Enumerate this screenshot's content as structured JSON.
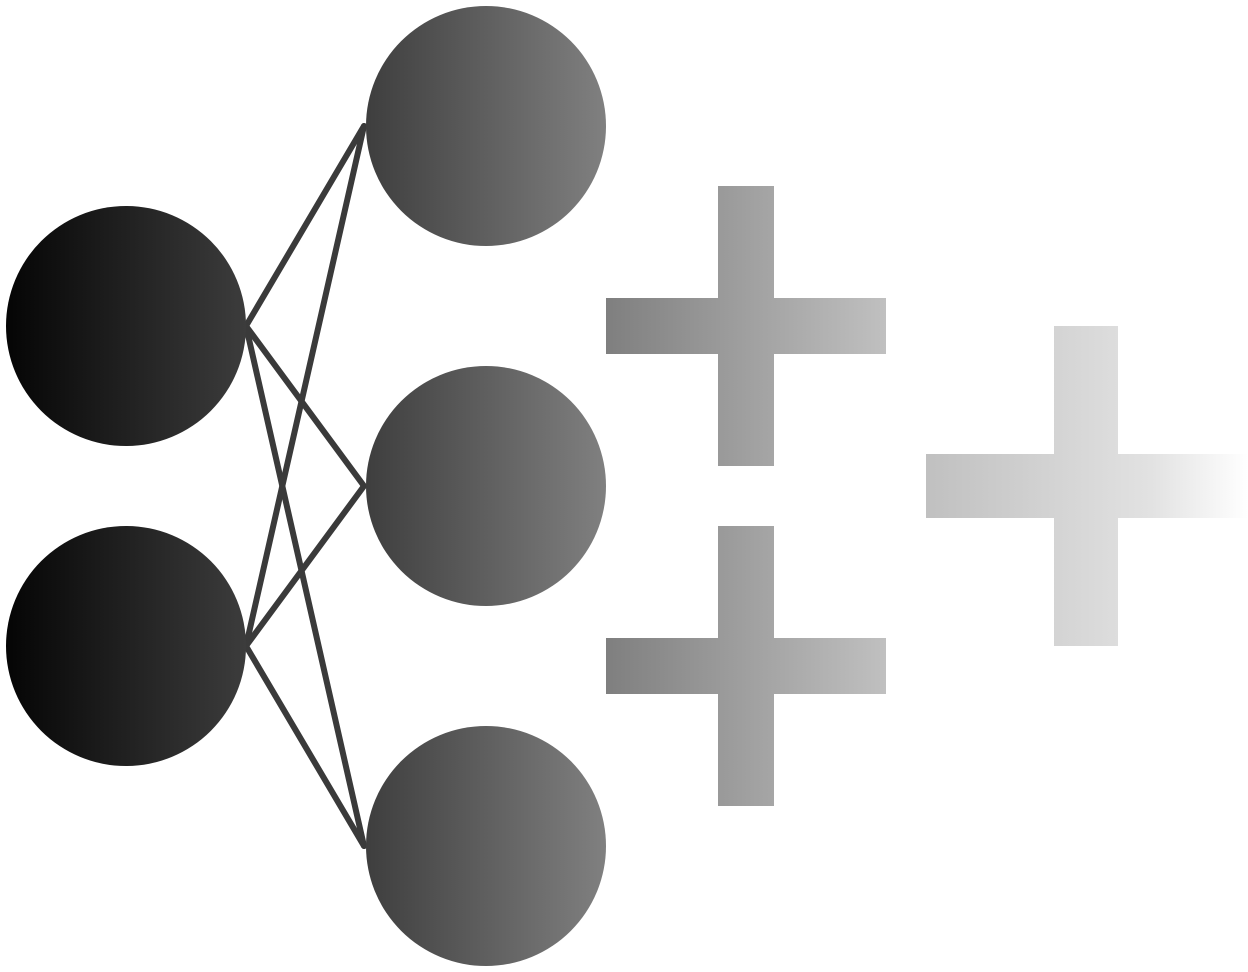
{
  "diagram": {
    "kind": "neural-network-logo",
    "layers": [
      {
        "name": "input",
        "node_count": 2
      },
      {
        "name": "output",
        "node_count": 3
      }
    ],
    "connections": "fully-connected",
    "extra_symbols": [
      "plus",
      "plus",
      "plus"
    ],
    "colors": {
      "background": "#ffffff",
      "edge": "#3a3a3a",
      "input_node_start": "#050505",
      "input_node_end": "#3c3c3c",
      "output_node_start": "#3e3e3e",
      "output_node_end": "#808080",
      "small_plus_start": "#7f7f7f",
      "small_plus_end": "#c0c0c0",
      "large_plus_start": "#c0c0c0",
      "large_plus_end": "#ffffff"
    }
  }
}
